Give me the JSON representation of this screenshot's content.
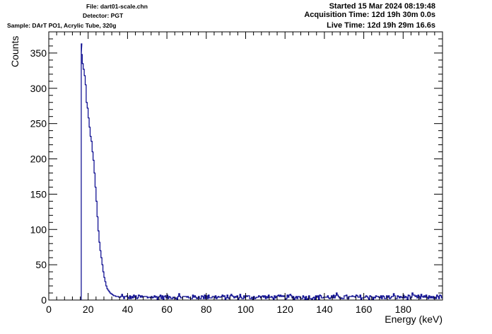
{
  "header": {
    "file": "File: dart01-scale.chn",
    "detector": "Detector: PGT",
    "sample": "Sample: DArT PO1, Acrylic Tube, 320g",
    "started": "Started 15 Mar 2024 08:19:48",
    "acquisition_time": "Acquisition Time: 12d 19h 30m 0.0s",
    "live_time": "Live Time: 12d 19h 29m 16.6s"
  },
  "chart_data": {
    "type": "histogram",
    "xlabel": "Energy (keV)",
    "ylabel": "Counts",
    "xlim": [
      0,
      200
    ],
    "ylim": [
      0,
      380
    ],
    "x_ticks": [
      0,
      20,
      40,
      60,
      80,
      100,
      120,
      140,
      160,
      180
    ],
    "x_tick_labels": [
      "0",
      "20",
      "40",
      "60",
      "80",
      "100",
      "120",
      "140",
      "160",
      "180"
    ],
    "y_ticks": [
      0,
      50,
      100,
      150,
      200,
      250,
      300,
      350
    ],
    "y_tick_labels": [
      "0",
      "50",
      "100",
      "150",
      "200",
      "250",
      "300",
      "350"
    ],
    "grid": false,
    "legend": "none",
    "line_color": "#00008b",
    "bin_width_keV": 0.5,
    "threshold_keV": 16.5,
    "peak": {
      "x": 16.8,
      "y": 363
    },
    "bins": [
      [
        16.5,
        348
      ],
      [
        17.0,
        335
      ],
      [
        17.5,
        327
      ],
      [
        18.0,
        318
      ],
      [
        18.5,
        305
      ],
      [
        19.0,
        280
      ],
      [
        19.5,
        272
      ],
      [
        20.0,
        258
      ],
      [
        20.5,
        245
      ],
      [
        21.0,
        232
      ],
      [
        21.5,
        225
      ],
      [
        22.0,
        210
      ],
      [
        22.5,
        198
      ],
      [
        23.0,
        180
      ],
      [
        23.5,
        160
      ],
      [
        24.0,
        140
      ],
      [
        24.5,
        118
      ],
      [
        25.0,
        98
      ],
      [
        25.5,
        82
      ],
      [
        26.0,
        70
      ],
      [
        26.5,
        60
      ],
      [
        27.0,
        50
      ],
      [
        27.5,
        40
      ],
      [
        28.0,
        32
      ],
      [
        28.5,
        26
      ],
      [
        29.0,
        20
      ],
      [
        29.5,
        16
      ],
      [
        30.0,
        14
      ],
      [
        30.5,
        12
      ],
      [
        31.0,
        10
      ],
      [
        31.5,
        9
      ],
      [
        32.0,
        8
      ],
      [
        32.5,
        7
      ],
      [
        33.0,
        6
      ],
      [
        33.5,
        6
      ],
      [
        34.0,
        5
      ],
      [
        34.5,
        5
      ],
      [
        35.0,
        5
      ],
      [
        35.5,
        4
      ],
      [
        36.0,
        4
      ]
    ],
    "baseline_counts_approx": 4
  }
}
